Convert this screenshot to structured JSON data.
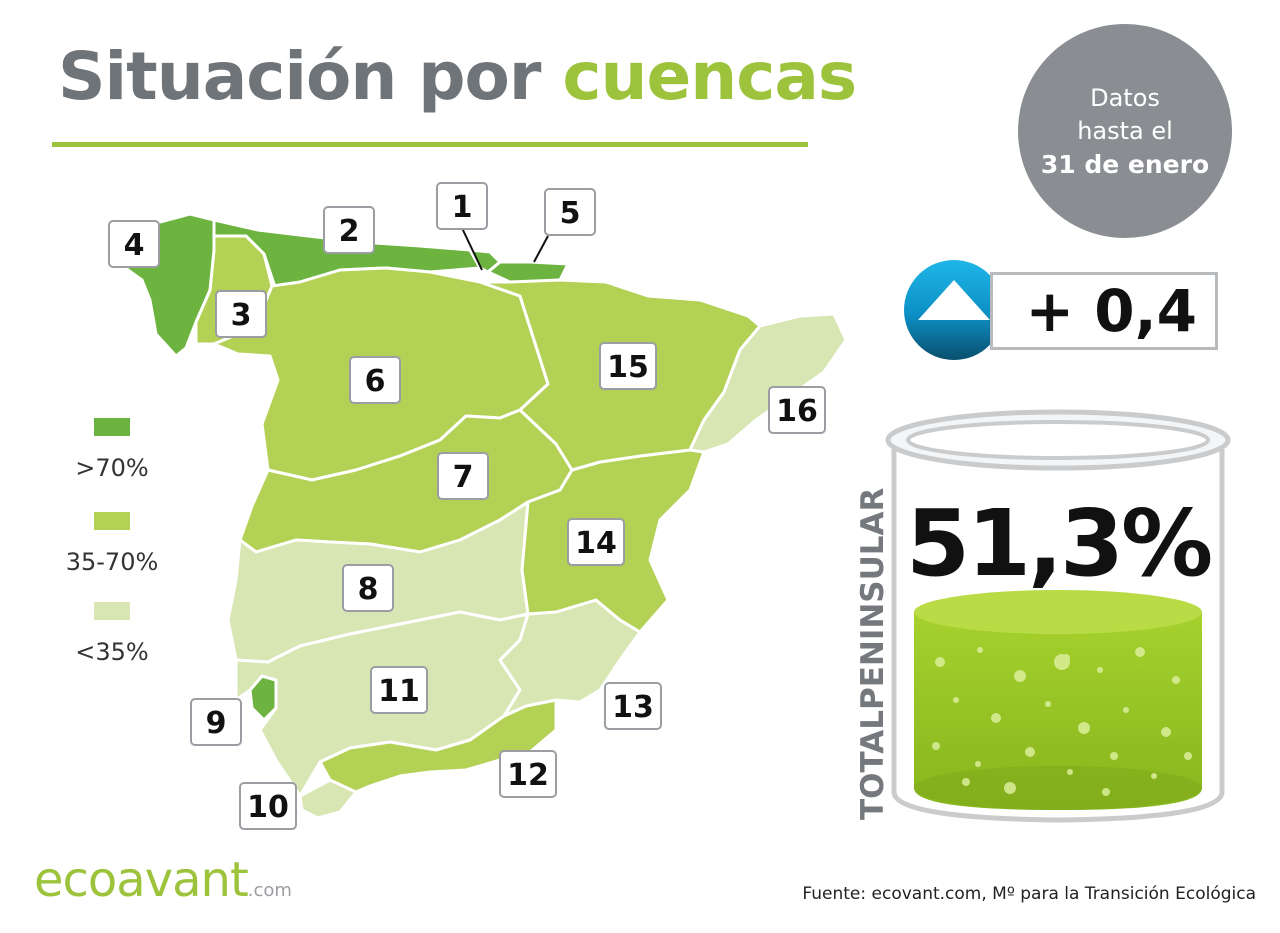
{
  "title": {
    "part1": "Situación por",
    "part2": "cuencas"
  },
  "date_badge": {
    "line1": "Datos",
    "line2": "hasta el",
    "line3": "31 de enero"
  },
  "colors": {
    "high": "#6db33f",
    "mid": "#b3d155",
    "low": "#d7e6b3",
    "accent": "#9cc33b",
    "gray": "#8a8e93",
    "border": "#ffffff"
  },
  "legend": [
    {
      "label": ">70%",
      "color": "#6db33f"
    },
    {
      "label": "35-70%",
      "color": "#b3d155"
    },
    {
      "label": "<35%",
      "color": "#d7e6b3"
    }
  ],
  "basins": [
    {
      "id": "1",
      "level": "high"
    },
    {
      "id": "2",
      "level": "high"
    },
    {
      "id": "3",
      "level": "mid"
    },
    {
      "id": "4",
      "level": "high"
    },
    {
      "id": "5",
      "level": "high"
    },
    {
      "id": "6",
      "level": "mid"
    },
    {
      "id": "7",
      "level": "mid"
    },
    {
      "id": "8",
      "level": "low"
    },
    {
      "id": "9",
      "level": "high"
    },
    {
      "id": "10",
      "level": "low"
    },
    {
      "id": "11",
      "level": "low"
    },
    {
      "id": "12",
      "level": "mid"
    },
    {
      "id": "13",
      "level": "low"
    },
    {
      "id": "14",
      "level": "mid"
    },
    {
      "id": "15",
      "level": "mid"
    },
    {
      "id": "16",
      "level": "low"
    }
  ],
  "change": {
    "value": "+ 0,4",
    "direction": "up-triangle-icon"
  },
  "total": {
    "label": "TOTALPENINSULAR",
    "value": "51,3%"
  },
  "footer": {
    "brand": "ecoavant",
    "brand_suffix": ".com",
    "source": "Fuente: ecovant.com, Mº para la Transición Ecológica"
  }
}
